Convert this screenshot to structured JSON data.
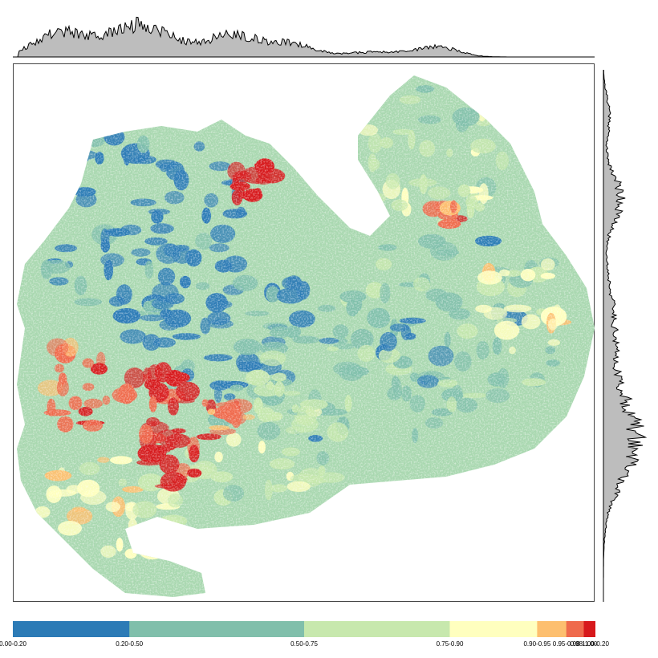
{
  "legend": {
    "classes": [
      {
        "label": "0.00-0.20",
        "color": "#2c7bb6",
        "range": [
          0.0,
          0.2
        ]
      },
      {
        "label": "0.20-0.50",
        "color": "#80bfab",
        "range": [
          0.2,
          0.5
        ]
      },
      {
        "label": "0.50-0.75",
        "color": "#c7e8ad",
        "range": [
          0.5,
          0.75
        ]
      },
      {
        "label": "0.75-0.90",
        "color": "#ffffbf",
        "range": [
          0.75,
          0.9
        ]
      },
      {
        "label": "0.90-0.95",
        "color": "#fdbf6f",
        "range": [
          0.9,
          0.95
        ]
      },
      {
        "label": "0.95-0.98",
        "color": "#ef6a4c",
        "range": [
          0.95,
          0.98
        ]
      },
      {
        "label": "0.98-1.00",
        "color": "#d7191c",
        "range": [
          0.98,
          1.0
        ]
      }
    ],
    "end_label": "1.00-0.20"
  },
  "colors": {
    "frame": "#444444",
    "profile_fill": "#bdbdbd",
    "profile_line": "#000000"
  }
}
